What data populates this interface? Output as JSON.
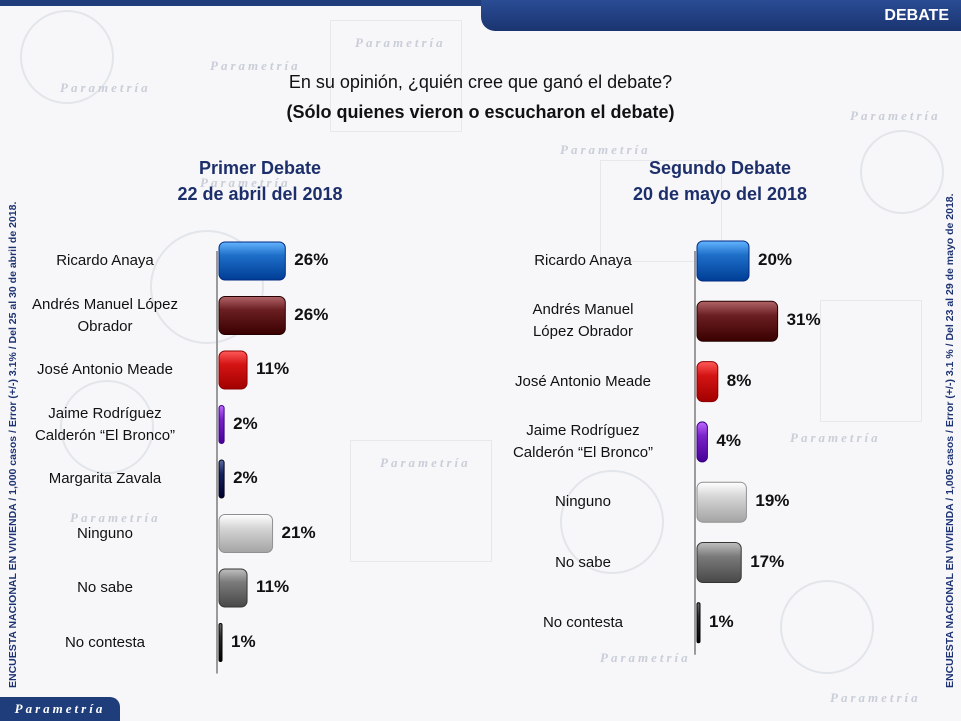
{
  "header": {
    "section_label": "DEBATE"
  },
  "question": {
    "line1": "En su opinión, ¿quién cree que ganó el debate?",
    "line2": "(Sólo quienes vieron o escucharon el debate)"
  },
  "side_notes": {
    "left": "ENCUESTA NACIONAL EN VIVIENDA / 1,000 casos / Error (+/-) 3.1% / Del 25 al 30 de abril de 2018.",
    "right": "ENCUESTA NACIONAL EN VIVIENDA / 1,005 casos / Error (+/-) 3.1 % / Del 23 al 29 de mayo de 2018."
  },
  "logo": {
    "text": "Parametría"
  },
  "colors": {
    "anaya": "#1e6fc8",
    "amlo": "#6b1f22",
    "meade": "#d41414",
    "bronco": "#7a22c8",
    "zavala": "#15235e",
    "ninguno": "#d6d6d6",
    "no_sabe": "#7a7a7a",
    "no_contesta": "#2a2a2a",
    "title": "#1d2f6b"
  },
  "chart_data": [
    {
      "type": "bar",
      "orientation": "horizontal",
      "title": "Primer Debate",
      "subtitle": "22 de abril del 2018",
      "categories": [
        "Ricardo Anaya",
        "Andrés Manuel López Obrador",
        "José Antonio Meade",
        "Jaime Rodríguez Calderón “El Bronco”",
        "Margarita Zavala",
        "Ninguno",
        "No sabe",
        "No contesta"
      ],
      "category_lines": [
        [
          "Ricardo Anaya"
        ],
        [
          "Andrés Manuel López",
          "Obrador"
        ],
        [
          "José Antonio Meade"
        ],
        [
          "Jaime Rodríguez",
          "Calderón “El Bronco”"
        ],
        [
          "Margarita Zavala"
        ],
        [
          "Ninguno"
        ],
        [
          "No sabe"
        ],
        [
          "No contesta"
        ]
      ],
      "values": [
        26,
        26,
        11,
        2,
        2,
        21,
        11,
        1
      ],
      "labels": [
        "26%",
        "26%",
        "11%",
        "2%",
        "2%",
        "21%",
        "11%",
        "1%"
      ],
      "color_keys": [
        "anaya",
        "amlo",
        "meade",
        "bronco",
        "zavala",
        "ninguno",
        "no_sabe",
        "no_contesta"
      ],
      "unit": "%"
    },
    {
      "type": "bar",
      "orientation": "horizontal",
      "title": "Segundo Debate",
      "subtitle": "20 de mayo del 2018",
      "categories": [
        "Ricardo Anaya",
        "Andrés Manuel López Obrador",
        "José Antonio Meade",
        "Jaime Rodríguez Calderón “El Bronco”",
        "Ninguno",
        "No sabe",
        "No contesta"
      ],
      "category_lines": [
        [
          "Ricardo Anaya"
        ],
        [
          "Andrés Manuel",
          "López Obrador"
        ],
        [
          "José Antonio Meade"
        ],
        [
          "Jaime Rodríguez",
          "Calderón “El Bronco”"
        ],
        [
          "Ninguno"
        ],
        [
          "No sabe"
        ],
        [
          "No contesta"
        ]
      ],
      "values": [
        20,
        31,
        8,
        4,
        19,
        17,
        1
      ],
      "labels": [
        "20%",
        "31%",
        "8%",
        "4%",
        "19%",
        "17%",
        "1%"
      ],
      "color_keys": [
        "anaya",
        "amlo",
        "meade",
        "bronco",
        "ninguno",
        "no_sabe",
        "no_contesta"
      ],
      "unit": "%"
    }
  ]
}
